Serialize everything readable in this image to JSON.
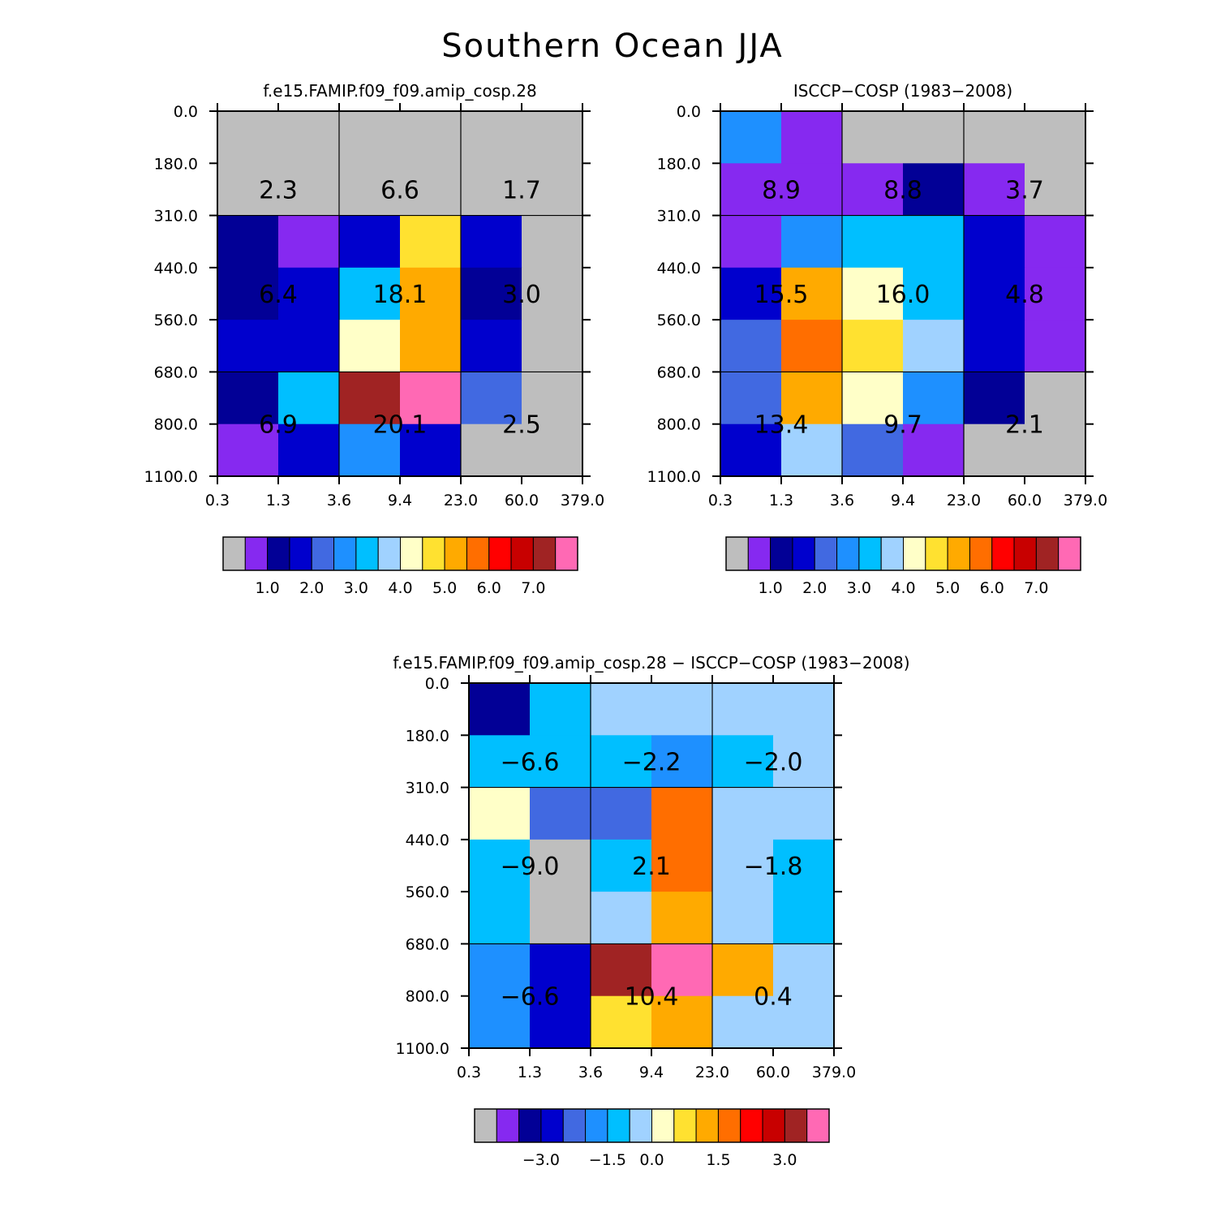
{
  "title": "Southern Ocean JJA",
  "palette": {
    "grey": "#bebebe",
    "c1": "#8629f0",
    "c2": "#020096",
    "c3": "#0000cd",
    "c4": "#4169e1",
    "c5": "#1e90ff",
    "c6": "#00bfff",
    "c7": "#a0d2ff",
    "c8": "#ffffc8",
    "c9": "#ffe130",
    "c10": "#ffaa00",
    "c11": "#ff6e00",
    "c12": "#ff0000",
    "c13": "#c80000",
    "c14": "#a02323",
    "c15": "#ff69b4"
  },
  "chart_data": [
    {
      "type": "heatmap",
      "title": "f.e15.FAMIP.f09_f09.amip_cosp.28",
      "x_ticks": [
        "0.3",
        "1.3",
        "3.6",
        "9.4",
        "23.0",
        "60.0",
        "379.0"
      ],
      "y_ticks": [
        "0.0",
        "180.0",
        "310.0",
        "440.0",
        "560.0",
        "680.0",
        "800.0",
        "1100.0"
      ],
      "cells": [
        [
          "grey",
          "grey",
          "grey",
          "grey",
          "grey",
          "grey"
        ],
        [
          "grey",
          "grey",
          "grey",
          "grey",
          "grey",
          "grey"
        ],
        [
          "c2",
          "c1",
          "c3",
          "c9",
          "c3",
          "grey"
        ],
        [
          "c2",
          "c3",
          "c6",
          "c10",
          "c2",
          "grey"
        ],
        [
          "c3",
          "c3",
          "c8",
          "c10",
          "c3",
          "grey"
        ],
        [
          "c2",
          "c6",
          "c14",
          "c15",
          "c4",
          "grey"
        ],
        [
          "c1",
          "c3",
          "c5",
          "c3",
          "grey",
          "grey"
        ]
      ],
      "box_values": [
        [
          "2.3",
          "6.6",
          "1.7"
        ],
        [
          "6.4",
          "18.1",
          "3.0"
        ],
        [
          "6.9",
          "20.1",
          "2.5"
        ]
      ],
      "colorbar": {
        "colors": [
          "grey",
          "c1",
          "c2",
          "c3",
          "c4",
          "c5",
          "c6",
          "c7",
          "c8",
          "c9",
          "c10",
          "c11",
          "c12",
          "c13",
          "c14",
          "c15"
        ],
        "labels": [
          {
            "after": 2,
            "text": "1.0"
          },
          {
            "after": 4,
            "text": "2.0"
          },
          {
            "after": 6,
            "text": "3.0"
          },
          {
            "after": 8,
            "text": "4.0"
          },
          {
            "after": 10,
            "text": "5.0"
          },
          {
            "after": 12,
            "text": "6.0"
          },
          {
            "after": 14,
            "text": "7.0"
          }
        ]
      }
    },
    {
      "type": "heatmap",
      "title": "ISCCP-COSP (1983-2008)",
      "x_ticks": [
        "0.3",
        "1.3",
        "3.6",
        "9.4",
        "23.0",
        "60.0",
        "379.0"
      ],
      "y_ticks": [
        "0.0",
        "180.0",
        "310.0",
        "440.0",
        "560.0",
        "680.0",
        "800.0",
        "1100.0"
      ],
      "cells": [
        [
          "c5",
          "c1",
          "grey",
          "grey",
          "grey",
          "grey"
        ],
        [
          "c1",
          "c1",
          "c1",
          "c2",
          "c1",
          "grey"
        ],
        [
          "c1",
          "c5",
          "c6",
          "c6",
          "c3",
          "c1"
        ],
        [
          "c3",
          "c10",
          "c8",
          "c6",
          "c3",
          "c1"
        ],
        [
          "c4",
          "c11",
          "c9",
          "c7",
          "c3",
          "c1"
        ],
        [
          "c4",
          "c10",
          "c8",
          "c5",
          "c2",
          "grey"
        ],
        [
          "c3",
          "c7",
          "c4",
          "c1",
          "grey",
          "grey"
        ]
      ],
      "box_values": [
        [
          "8.9",
          "8.8",
          "3.7"
        ],
        [
          "15.5",
          "16.0",
          "4.8"
        ],
        [
          "13.4",
          "9.7",
          "2.1"
        ]
      ],
      "colorbar": {
        "colors": [
          "grey",
          "c1",
          "c2",
          "c3",
          "c4",
          "c5",
          "c6",
          "c7",
          "c8",
          "c9",
          "c10",
          "c11",
          "c12",
          "c13",
          "c14",
          "c15"
        ],
        "labels": [
          {
            "after": 2,
            "text": "1.0"
          },
          {
            "after": 4,
            "text": "2.0"
          },
          {
            "after": 6,
            "text": "3.0"
          },
          {
            "after": 8,
            "text": "4.0"
          },
          {
            "after": 10,
            "text": "5.0"
          },
          {
            "after": 12,
            "text": "6.0"
          },
          {
            "after": 14,
            "text": "7.0"
          }
        ]
      }
    },
    {
      "type": "heatmap",
      "title": "f.e15.FAMIP.f09_f09.amip_cosp.28 - ISCCP-COSP (1983-2008)",
      "x_ticks": [
        "0.3",
        "1.3",
        "3.6",
        "9.4",
        "23.0",
        "60.0",
        "379.0"
      ],
      "y_ticks": [
        "0.0",
        "180.0",
        "310.0",
        "440.0",
        "560.0",
        "680.0",
        "800.0",
        "1100.0"
      ],
      "cells": [
        [
          "c2",
          "c6",
          "c7",
          "c7",
          "c7",
          "c7"
        ],
        [
          "c6",
          "c6",
          "c6",
          "c5",
          "c6",
          "c7"
        ],
        [
          "c8",
          "c4",
          "c4",
          "c11",
          "c7",
          "c7"
        ],
        [
          "c6",
          "grey",
          "c6",
          "c11",
          "c7",
          "c6"
        ],
        [
          "c6",
          "grey",
          "c7",
          "c10",
          "c7",
          "c6"
        ],
        [
          "c5",
          "c3",
          "c14",
          "c15",
          "c10",
          "c7"
        ],
        [
          "c5",
          "c3",
          "c9",
          "c10",
          "c7",
          "c7"
        ]
      ],
      "box_values": [
        [
          "-6.6",
          "-2.2",
          "-2.0"
        ],
        [
          "-9.0",
          "2.1",
          "-1.8"
        ],
        [
          "-6.6",
          "10.4",
          "0.4"
        ]
      ],
      "colorbar": {
        "colors": [
          "grey",
          "c1",
          "c2",
          "c3",
          "c4",
          "c5",
          "c6",
          "c7",
          "c8",
          "c9",
          "c10",
          "c11",
          "c12",
          "c13",
          "c14",
          "c15"
        ],
        "labels": [
          {
            "after": 3,
            "text": "-3.0"
          },
          {
            "after": 6,
            "text": "-1.5"
          },
          {
            "after": 8,
            "text": "0.0"
          },
          {
            "after": 11,
            "text": "1.5"
          },
          {
            "after": 14,
            "text": "3.0"
          }
        ]
      }
    }
  ]
}
